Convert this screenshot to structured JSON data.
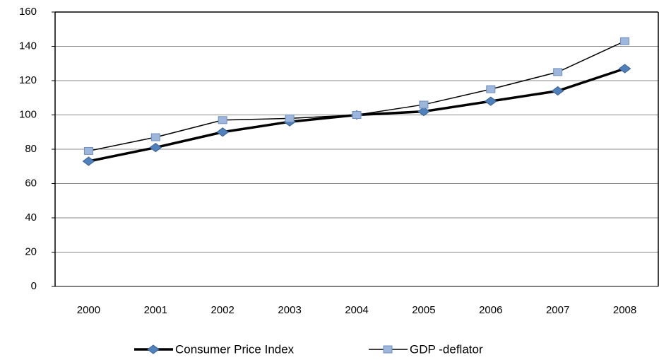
{
  "chart_data": {
    "type": "line",
    "categories": [
      "2000",
      "2001",
      "2002",
      "2003",
      "2004",
      "2005",
      "2006",
      "2007",
      "2008"
    ],
    "series": [
      {
        "name": "Consumer Price Index",
        "color": "#000000",
        "marker": "diamond",
        "marker_color": "#4f81bd",
        "values": [
          73,
          81,
          90,
          96,
          100,
          102,
          108,
          114,
          127
        ]
      },
      {
        "name": "GDP -deflator",
        "color": "#000000",
        "marker": "square",
        "marker_color": "#9db7dc",
        "values": [
          79,
          87,
          97,
          98,
          100,
          106,
          115,
          125,
          143
        ]
      }
    ],
    "ylim": [
      0,
      160
    ],
    "yticks": [
      0,
      20,
      40,
      60,
      80,
      100,
      120,
      140,
      160
    ],
    "grid": true,
    "legend": "bottom"
  }
}
